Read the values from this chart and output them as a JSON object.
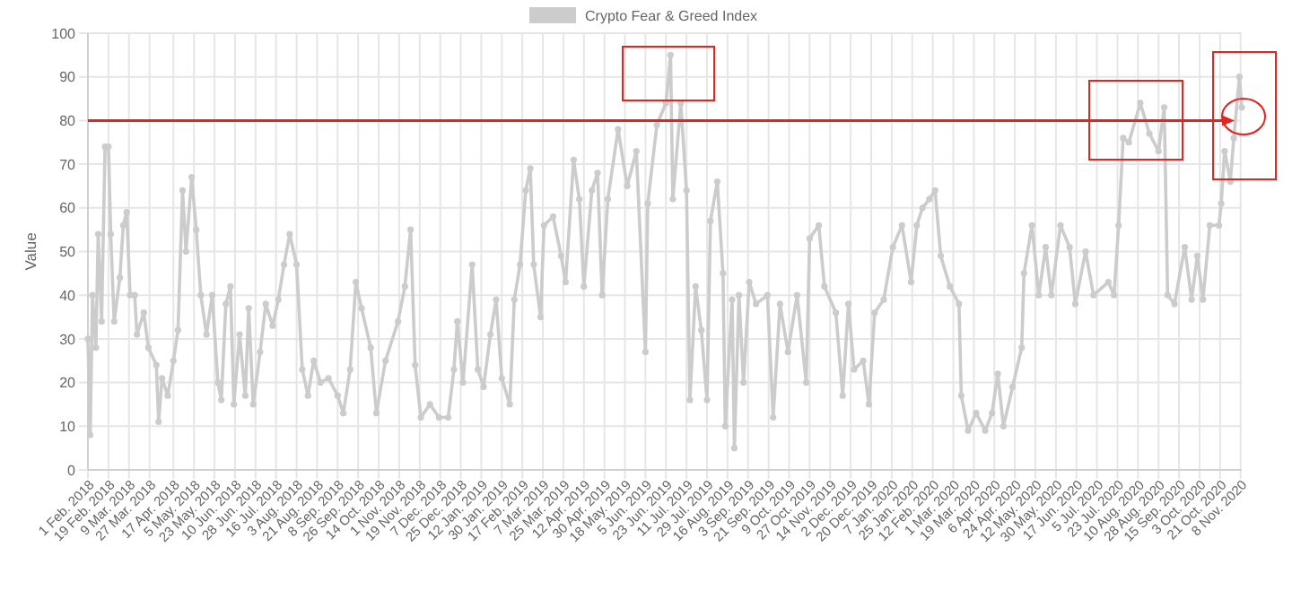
{
  "chart_data": {
    "type": "line",
    "ylabel": "Value",
    "legend": "top",
    "grid": true,
    "marker": "circle",
    "line_style": "solid",
    "xlim": [
      "2018-02-01",
      "2020-11-09"
    ],
    "ylim": [
      0,
      100
    ],
    "yticks": [
      0,
      10,
      20,
      30,
      40,
      50,
      60,
      70,
      80,
      90,
      100
    ],
    "xticks": [
      {
        "value": "2018-02-01",
        "label": "1 Feb. 2018"
      },
      {
        "value": "2018-02-19",
        "label": "19 Feb. 2018"
      },
      {
        "value": "2018-03-09",
        "label": "9 Mar. 2018"
      },
      {
        "value": "2018-03-27",
        "label": "27 Mar. 2018"
      },
      {
        "value": "2018-04-17",
        "label": "17 Apr. 2018"
      },
      {
        "value": "2018-05-05",
        "label": "5 May. 2018"
      },
      {
        "value": "2018-05-23",
        "label": "23 May. 2018"
      },
      {
        "value": "2018-06-10",
        "label": "10 Jun. 2018"
      },
      {
        "value": "2018-06-28",
        "label": "28 Jun. 2018"
      },
      {
        "value": "2018-07-16",
        "label": "16 Jul. 2018"
      },
      {
        "value": "2018-08-03",
        "label": "3 Aug. 2018"
      },
      {
        "value": "2018-08-21",
        "label": "21 Aug. 2018"
      },
      {
        "value": "2018-09-08",
        "label": "8 Sep. 2018"
      },
      {
        "value": "2018-09-26",
        "label": "26 Sep. 2018"
      },
      {
        "value": "2018-10-14",
        "label": "14 Oct. 2018"
      },
      {
        "value": "2018-11-01",
        "label": "1 Nov. 2018"
      },
      {
        "value": "2018-11-19",
        "label": "19 Nov. 2018"
      },
      {
        "value": "2018-12-07",
        "label": "7 Dec. 2018"
      },
      {
        "value": "2018-12-25",
        "label": "25 Dec. 2018"
      },
      {
        "value": "2019-01-12",
        "label": "12 Jan. 2019"
      },
      {
        "value": "2019-01-30",
        "label": "30 Jan. 2019"
      },
      {
        "value": "2019-02-17",
        "label": "17 Feb. 2019"
      },
      {
        "value": "2019-03-07",
        "label": "7 Mar. 2019"
      },
      {
        "value": "2019-03-25",
        "label": "25 Mar. 2019"
      },
      {
        "value": "2019-04-12",
        "label": "12 Apr. 2019"
      },
      {
        "value": "2019-04-30",
        "label": "30 Apr. 2019"
      },
      {
        "value": "2019-05-18",
        "label": "18 May. 2019"
      },
      {
        "value": "2019-06-05",
        "label": "5 Jun. 2019"
      },
      {
        "value": "2019-06-23",
        "label": "23 Jun. 2019"
      },
      {
        "value": "2019-07-11",
        "label": "11 Jul. 2019"
      },
      {
        "value": "2019-07-29",
        "label": "29 Jul. 2019"
      },
      {
        "value": "2019-08-16",
        "label": "16 Aug. 2019"
      },
      {
        "value": "2019-09-03",
        "label": "3 Sep. 2019"
      },
      {
        "value": "2019-09-21",
        "label": "21 Sep. 2019"
      },
      {
        "value": "2019-10-09",
        "label": "9 Oct. 2019"
      },
      {
        "value": "2019-10-27",
        "label": "27 Oct. 2019"
      },
      {
        "value": "2019-11-14",
        "label": "14 Nov. 2019"
      },
      {
        "value": "2019-12-02",
        "label": "2 Dec. 2019"
      },
      {
        "value": "2019-12-20",
        "label": "20 Dec. 2019"
      },
      {
        "value": "2020-01-07",
        "label": "7 Jan. 2020"
      },
      {
        "value": "2020-01-25",
        "label": "25 Jan. 2020"
      },
      {
        "value": "2020-02-12",
        "label": "12 Feb. 2020"
      },
      {
        "value": "2020-03-01",
        "label": "1 Mar. 2020"
      },
      {
        "value": "2020-03-19",
        "label": "19 Mar. 2020"
      },
      {
        "value": "2020-04-06",
        "label": "6 Apr. 2020"
      },
      {
        "value": "2020-04-24",
        "label": "24 Apr. 2020"
      },
      {
        "value": "2020-05-12",
        "label": "12 May. 2020"
      },
      {
        "value": "2020-05-30",
        "label": "30 May. 2020"
      },
      {
        "value": "2020-06-17",
        "label": "17 Jun. 2020"
      },
      {
        "value": "2020-07-05",
        "label": "5 Jul. 2020"
      },
      {
        "value": "2020-07-23",
        "label": "23 Jul. 2020"
      },
      {
        "value": "2020-08-10",
        "label": "10 Aug. 2020"
      },
      {
        "value": "2020-08-28",
        "label": "28 Aug. 2020"
      },
      {
        "value": "2020-09-15",
        "label": "15 Sep. 2020"
      },
      {
        "value": "2020-10-03",
        "label": "3 Oct. 2020"
      },
      {
        "value": "2020-10-21",
        "label": "21 Oct. 2020"
      },
      {
        "value": "2020-11-08",
        "label": "8 Nov. 2020"
      }
    ],
    "ref_lines": [
      {
        "axis": "y",
        "value": 80,
        "color": "#e8231f"
      }
    ],
    "series": [
      {
        "name": "Crypto Fear & Greed Index",
        "color": "#cccccc",
        "x": [
          "2018-02-01",
          "2018-02-03",
          "2018-02-05",
          "2018-02-08",
          "2018-02-10",
          "2018-02-13",
          "2018-02-16",
          "2018-02-19",
          "2018-02-21",
          "2018-02-24",
          "2018-03-01",
          "2018-03-04",
          "2018-03-07",
          "2018-03-10",
          "2018-03-14",
          "2018-03-16",
          "2018-03-22",
          "2018-03-26",
          "2018-04-02",
          "2018-04-04",
          "2018-04-07",
          "2018-04-12",
          "2018-04-17",
          "2018-04-21",
          "2018-04-25",
          "2018-04-28",
          "2018-05-03",
          "2018-05-07",
          "2018-05-11",
          "2018-05-16",
          "2018-05-21",
          "2018-05-26",
          "2018-05-29",
          "2018-06-02",
          "2018-06-06",
          "2018-06-09",
          "2018-06-14",
          "2018-06-19",
          "2018-06-22",
          "2018-06-26",
          "2018-07-02",
          "2018-07-07",
          "2018-07-13",
          "2018-07-18",
          "2018-07-23",
          "2018-07-28",
          "2018-08-03",
          "2018-08-08",
          "2018-08-13",
          "2018-08-18",
          "2018-08-24",
          "2018-08-31",
          "2018-09-08",
          "2018-09-13",
          "2018-09-19",
          "2018-09-24",
          "2018-09-29",
          "2018-10-07",
          "2018-10-12",
          "2018-10-20",
          "2018-10-31",
          "2018-11-06",
          "2018-11-11",
          "2018-11-15",
          "2018-11-20",
          "2018-11-28",
          "2018-12-06",
          "2018-12-14",
          "2018-12-19",
          "2018-12-22",
          "2018-12-27",
          "2019-01-04",
          "2019-01-09",
          "2019-01-14",
          "2019-01-20",
          "2019-01-25",
          "2019-01-30",
          "2019-02-06",
          "2019-02-10",
          "2019-02-15",
          "2019-02-20",
          "2019-02-24",
          "2019-02-27",
          "2019-03-05",
          "2019-03-08",
          "2019-03-16",
          "2019-03-23",
          "2019-03-27",
          "2019-04-03",
          "2019-04-08",
          "2019-04-12",
          "2019-04-19",
          "2019-04-24",
          "2019-04-28",
          "2019-05-03",
          "2019-05-12",
          "2019-05-20",
          "2019-05-28",
          "2019-06-05",
          "2019-06-07",
          "2019-06-15",
          "2019-06-23",
          "2019-06-27",
          "2019-06-29",
          "2019-07-06",
          "2019-07-11",
          "2019-07-14",
          "2019-07-19",
          "2019-07-24",
          "2019-07-29",
          "2019-08-01",
          "2019-08-07",
          "2019-08-12",
          "2019-08-14",
          "2019-08-20",
          "2019-08-22",
          "2019-08-26",
          "2019-08-30",
          "2019-09-04",
          "2019-09-10",
          "2019-09-20",
          "2019-09-25",
          "2019-10-01",
          "2019-10-08",
          "2019-10-16",
          "2019-10-24",
          "2019-10-27",
          "2019-11-04",
          "2019-11-09",
          "2019-11-19",
          "2019-11-25",
          "2019-11-30",
          "2019-12-05",
          "2019-12-13",
          "2019-12-18",
          "2019-12-23",
          "2019-12-31",
          "2020-01-08",
          "2020-01-16",
          "2020-01-24",
          "2020-01-29",
          "2020-02-03",
          "2020-02-09",
          "2020-02-14",
          "2020-02-19",
          "2020-02-27",
          "2020-03-06",
          "2020-03-08",
          "2020-03-14",
          "2020-03-21",
          "2020-03-29",
          "2020-04-04",
          "2020-04-09",
          "2020-04-14",
          "2020-04-22",
          "2020-04-30",
          "2020-05-02",
          "2020-05-09",
          "2020-05-15",
          "2020-05-21",
          "2020-05-26",
          "2020-06-03",
          "2020-06-11",
          "2020-06-16",
          "2020-06-25",
          "2020-07-02",
          "2020-07-15",
          "2020-07-20",
          "2020-07-24",
          "2020-07-28",
          "2020-08-02",
          "2020-08-12",
          "2020-08-20",
          "2020-08-28",
          "2020-09-02",
          "2020-09-05",
          "2020-09-11",
          "2020-09-20",
          "2020-09-26",
          "2020-10-01",
          "2020-10-06",
          "2020-10-12",
          "2020-10-20",
          "2020-10-22",
          "2020-10-25",
          "2020-10-30",
          "2020-11-02",
          "2020-11-07",
          "2020-11-09"
        ],
        "values": [
          30,
          8,
          40,
          28,
          54,
          34,
          74,
          74,
          54,
          34,
          44,
          56,
          59,
          40,
          40,
          31,
          36,
          28,
          24,
          11,
          21,
          17,
          25,
          32,
          64,
          50,
          67,
          55,
          40,
          31,
          40,
          20,
          16,
          38,
          42,
          15,
          31,
          17,
          37,
          15,
          27,
          38,
          33,
          39,
          47,
          54,
          47,
          23,
          17,
          25,
          20,
          21,
          17,
          13,
          23,
          43,
          37,
          28,
          13,
          25,
          34,
          42,
          55,
          24,
          12,
          15,
          12,
          12,
          23,
          34,
          20,
          47,
          23,
          19,
          31,
          39,
          21,
          15,
          39,
          47,
          64,
          69,
          47,
          35,
          56,
          58,
          49,
          43,
          71,
          62,
          42,
          64,
          68,
          40,
          62,
          78,
          65,
          73,
          27,
          61,
          79,
          84,
          95,
          62,
          84,
          64,
          16,
          42,
          32,
          16,
          57,
          66,
          45,
          10,
          39,
          5,
          40,
          20,
          43,
          38,
          40,
          12,
          38,
          27,
          40,
          20,
          53,
          56,
          42,
          36,
          17,
          38,
          23,
          25,
          15,
          36,
          39,
          51,
          56,
          43,
          56,
          60,
          62,
          64,
          49,
          42,
          38,
          17,
          9,
          13,
          9,
          13,
          22,
          10,
          19,
          28,
          45,
          56,
          40,
          51,
          40,
          56,
          51,
          38,
          50,
          40,
          43,
          40,
          56,
          76,
          75,
          84,
          77,
          73,
          83,
          40,
          38,
          51,
          39,
          49,
          39,
          56,
          56,
          61,
          73,
          66,
          76,
          90,
          83
        ]
      }
    ]
  }
}
